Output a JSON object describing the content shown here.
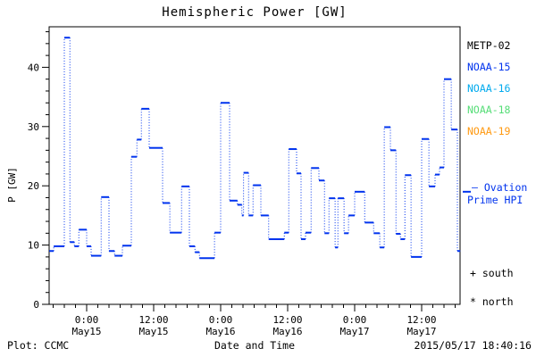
{
  "title": "Hemispheric Power [GW]",
  "footer": {
    "left": "Plot: CCMC",
    "right": "2015/05/17 18:40:16"
  },
  "colors": {
    "data_line": "#0033ee",
    "axis": "#000000",
    "background": "#ffffff",
    "metop02": "#000000",
    "noaa15": "#0033ee",
    "noaa16": "#00aaee",
    "noaa18": "#55dd77",
    "noaa19": "#ff9911"
  },
  "legend": {
    "satellites": [
      {
        "label": "METP-02",
        "color": "#000000"
      },
      {
        "label": "NOAA-15",
        "color": "#0033ee"
      },
      {
        "label": "NOAA-16",
        "color": "#00aaee"
      },
      {
        "label": "NOAA-18",
        "color": "#55dd77"
      },
      {
        "label": "NOAA-19",
        "color": "#ff9911"
      }
    ],
    "ovation_note": {
      "line1": "— Ovation",
      "line2": "Prime HPI",
      "color": "#0033ee"
    },
    "markers": [
      {
        "symbol": "+",
        "label": "south"
      },
      {
        "symbol": "*",
        "label": "north"
      }
    ]
  },
  "chart_data": {
    "type": "line",
    "subtype": "step-segments-with-dotted-connectors",
    "title": "Hemispheric Power [GW]",
    "xlabel": "Date and Time",
    "ylabel": "P [GW]",
    "units": "GW",
    "ylim": [
      0,
      46.8
    ],
    "y_ticks": [
      0,
      10,
      20,
      30,
      40
    ],
    "y_minor_step": 2,
    "xlim_hours_from_may15_0000": [
      -6.7,
      66.9
    ],
    "x_minor_step_hours": 2,
    "x_ticks": [
      {
        "time": "0:00",
        "date": "May15",
        "hours": 0
      },
      {
        "time": "12:00",
        "date": "May15",
        "hours": 12
      },
      {
        "time": "0:00",
        "date": "May16",
        "hours": 24
      },
      {
        "time": "12:00",
        "date": "May16",
        "hours": 36
      },
      {
        "time": "0:00",
        "date": "May17",
        "hours": 48
      },
      {
        "time": "12:00",
        "date": "May17",
        "hours": 60
      }
    ],
    "series_name": "Hemispheric Power (NOAA-15, north+south)",
    "ovation_marker_gw": 19.0,
    "segments_t0_t1_gw": [
      [
        -6.7,
        -5.9,
        9.0
      ],
      [
        -5.9,
        -4.0,
        9.8
      ],
      [
        -4.0,
        -3.0,
        45.0
      ],
      [
        -3.0,
        -2.2,
        10.5
      ],
      [
        -2.2,
        -1.4,
        9.8
      ],
      [
        -1.4,
        0.0,
        12.6
      ],
      [
        0.0,
        0.8,
        9.8
      ],
      [
        0.8,
        2.6,
        8.2
      ],
      [
        2.6,
        4.0,
        18.1
      ],
      [
        4.0,
        5.0,
        9.0
      ],
      [
        5.0,
        6.4,
        8.2
      ],
      [
        6.4,
        8.0,
        9.9
      ],
      [
        8.0,
        9.0,
        24.9
      ],
      [
        9.0,
        9.8,
        27.8
      ],
      [
        9.8,
        11.2,
        33.0
      ],
      [
        11.2,
        13.6,
        26.4
      ],
      [
        13.6,
        14.9,
        17.1
      ],
      [
        14.9,
        17.0,
        12.1
      ],
      [
        17.0,
        18.4,
        19.9
      ],
      [
        18.4,
        19.4,
        9.8
      ],
      [
        19.4,
        20.2,
        8.8
      ],
      [
        20.2,
        22.9,
        7.8
      ],
      [
        22.9,
        24.0,
        12.1
      ],
      [
        24.0,
        25.6,
        34.0
      ],
      [
        25.6,
        27.0,
        17.5
      ],
      [
        27.0,
        27.8,
        16.8
      ],
      [
        27.8,
        28.1,
        15.0
      ],
      [
        28.1,
        29.0,
        22.2
      ],
      [
        29.0,
        29.8,
        15.0
      ],
      [
        29.8,
        31.2,
        20.1
      ],
      [
        31.2,
        32.6,
        15.0
      ],
      [
        32.6,
        35.4,
        11.0
      ],
      [
        35.4,
        36.2,
        12.1
      ],
      [
        36.2,
        37.6,
        26.2
      ],
      [
        37.6,
        38.4,
        22.1
      ],
      [
        38.4,
        39.2,
        11.0
      ],
      [
        39.2,
        40.2,
        12.1
      ],
      [
        40.2,
        41.6,
        23.0
      ],
      [
        41.6,
        42.6,
        20.9
      ],
      [
        42.6,
        43.4,
        12.0
      ],
      [
        43.4,
        44.5,
        17.9
      ],
      [
        44.5,
        45.0,
        9.6
      ],
      [
        45.0,
        46.1,
        17.9
      ],
      [
        46.1,
        46.9,
        12.0
      ],
      [
        46.9,
        48.0,
        15.0
      ],
      [
        48.0,
        49.8,
        19.0
      ],
      [
        49.8,
        51.4,
        13.8
      ],
      [
        51.4,
        52.5,
        12.0
      ],
      [
        52.5,
        53.3,
        9.6
      ],
      [
        53.3,
        54.4,
        29.9
      ],
      [
        54.4,
        55.4,
        26.0
      ],
      [
        55.4,
        56.2,
        11.9
      ],
      [
        56.2,
        57.0,
        11.0
      ],
      [
        57.0,
        58.1,
        21.8
      ],
      [
        58.1,
        60.0,
        8.0
      ],
      [
        60.0,
        61.3,
        27.9
      ],
      [
        61.3,
        62.4,
        19.9
      ],
      [
        62.4,
        63.2,
        21.9
      ],
      [
        63.2,
        64.0,
        23.1
      ],
      [
        64.0,
        65.3,
        38.0
      ],
      [
        65.3,
        66.4,
        29.5
      ],
      [
        66.4,
        66.9,
        9.0
      ]
    ]
  }
}
